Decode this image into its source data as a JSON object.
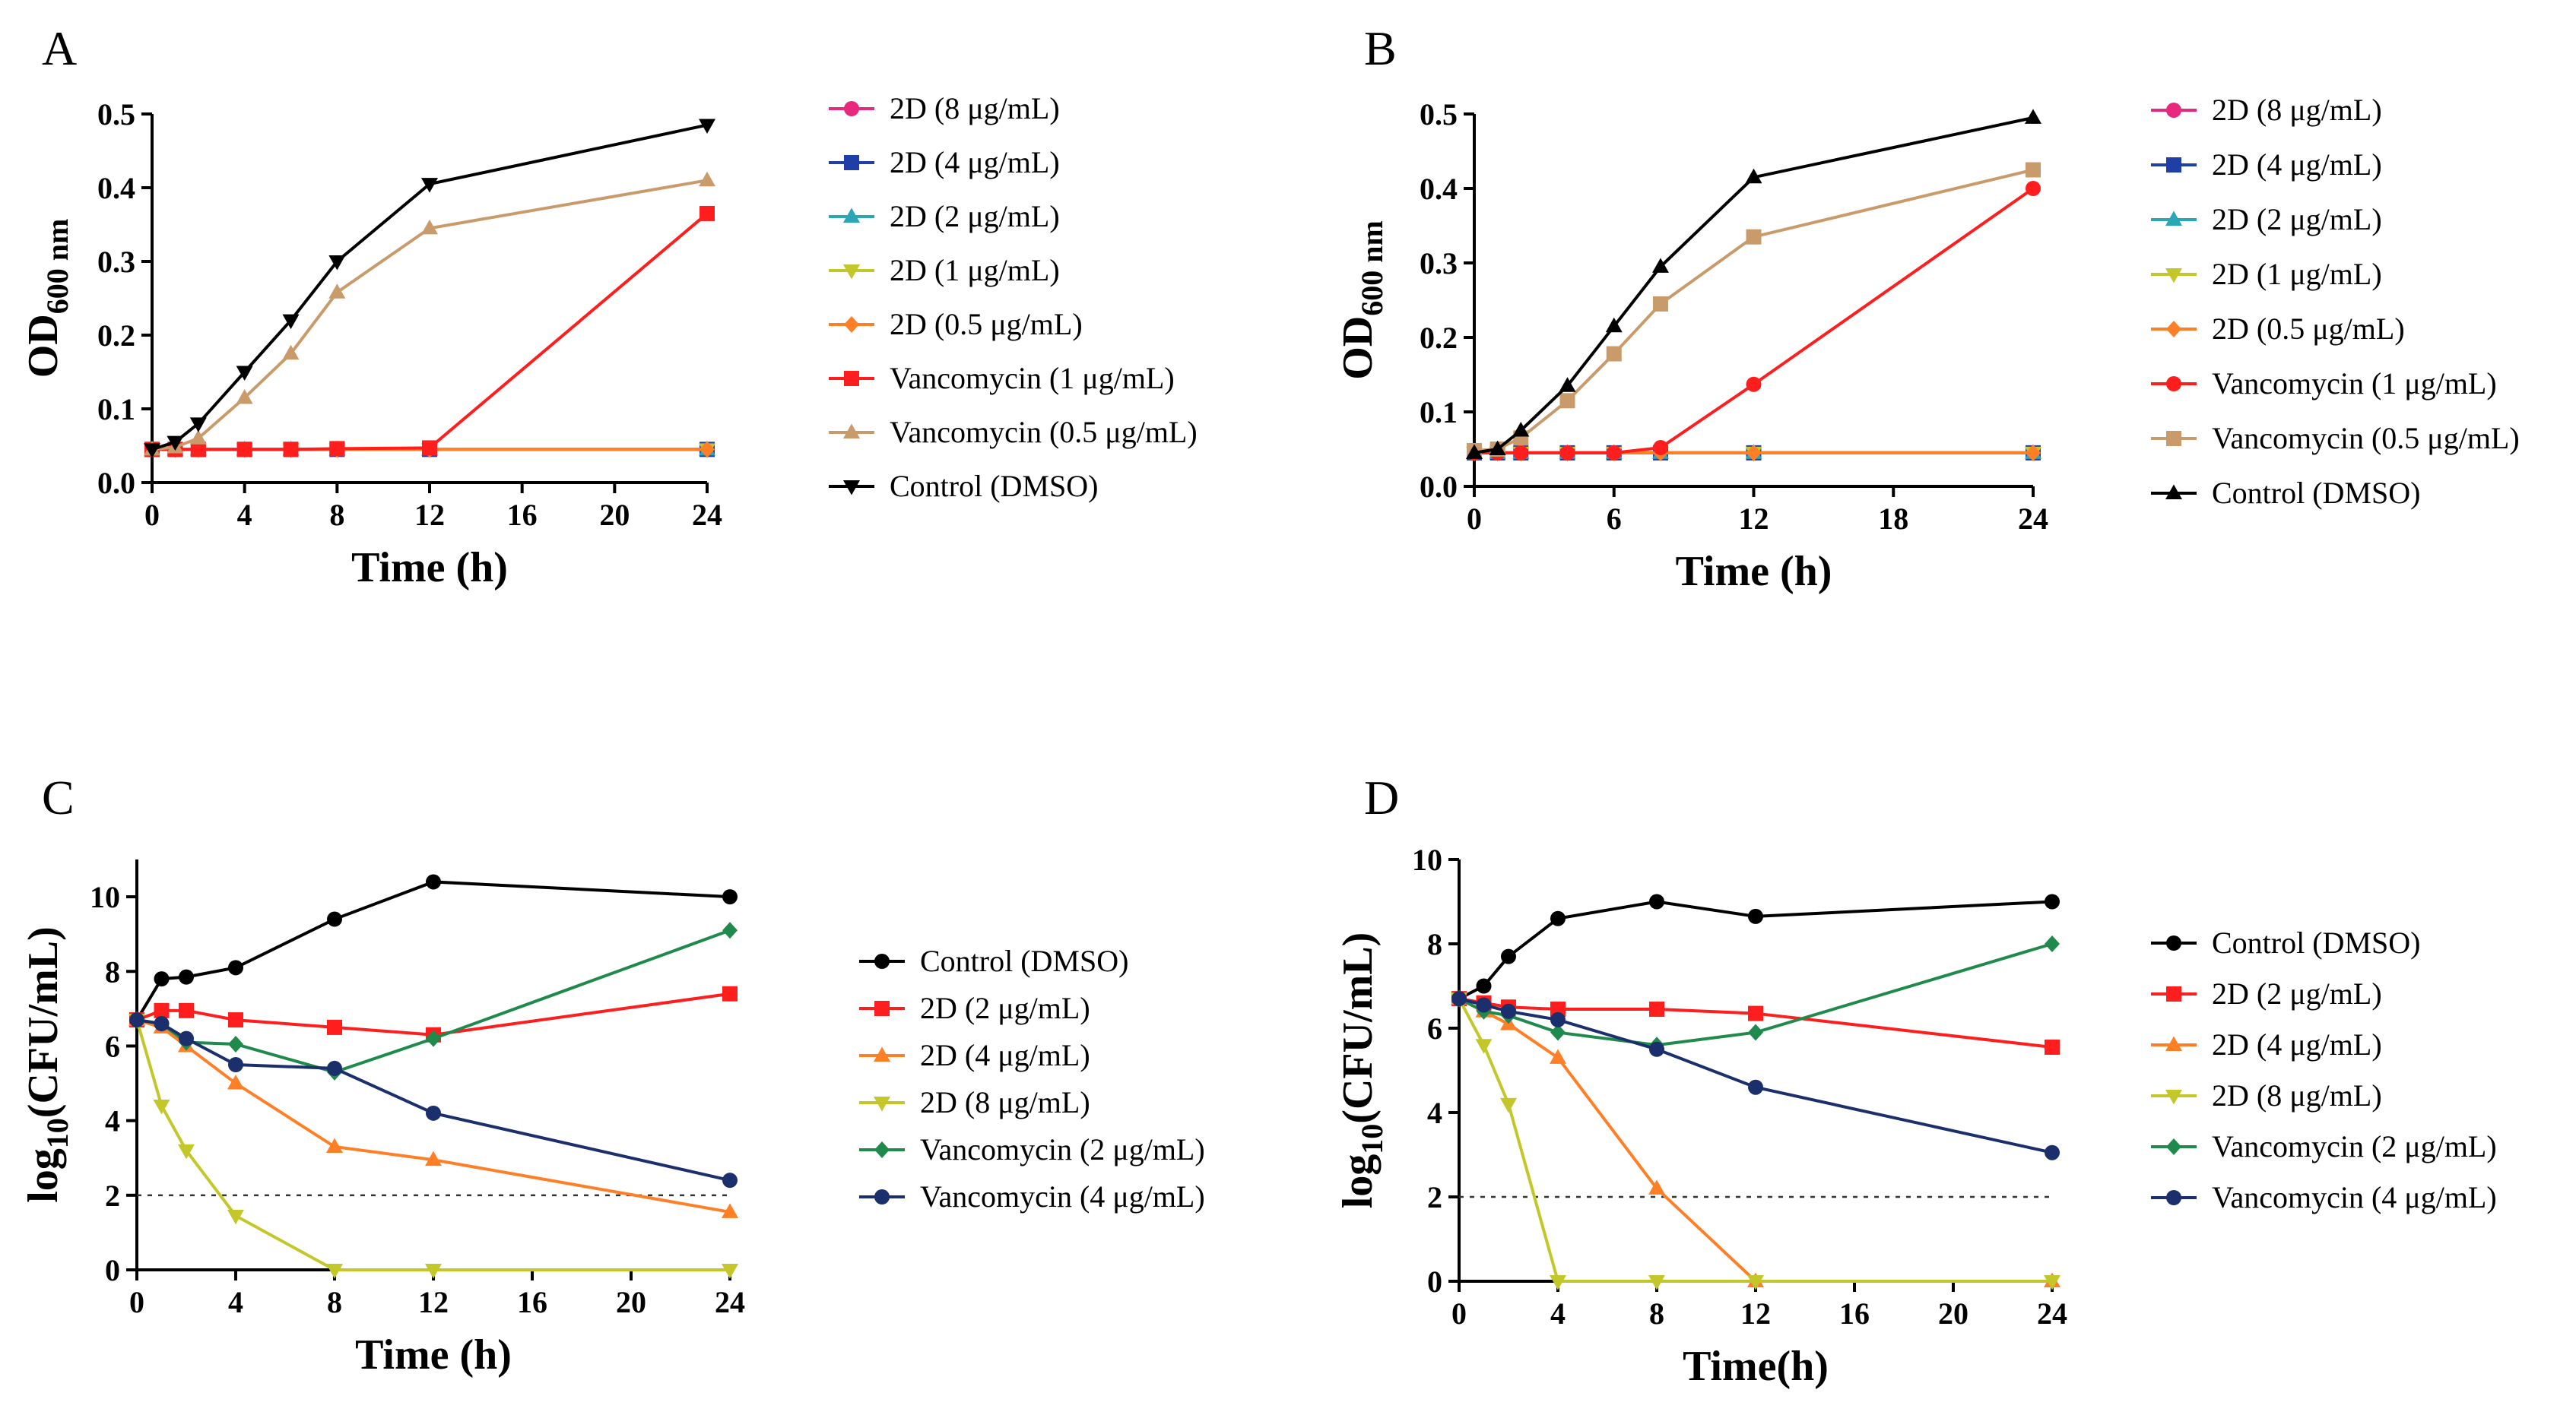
{
  "chart_data": [
    {
      "panel": "A",
      "type": "line",
      "xlabel": "Time (h)",
      "ylabel_main": "OD",
      "ylabel_sub": "600 nm",
      "xlim": [
        0,
        24
      ],
      "ylim": [
        0,
        0.5
      ],
      "xticks": [
        0,
        4,
        8,
        12,
        16,
        20,
        24
      ],
      "yticks": [
        0.0,
        0.1,
        0.2,
        0.3,
        0.4,
        0.5
      ],
      "ytick_format": 1,
      "legend_position": "right",
      "series": [
        {
          "name": "2D (8 μg/mL)",
          "color": "#e6287e",
          "marker": "circle",
          "x": [
            0,
            1,
            2,
            4,
            6,
            8,
            12,
            24
          ],
          "y": [
            0.045,
            0.045,
            0.045,
            0.045,
            0.045,
            0.045,
            0.045,
            0.045
          ]
        },
        {
          "name": "2D (4 μg/mL)",
          "color": "#1f3fa6",
          "marker": "square",
          "x": [
            0,
            1,
            2,
            4,
            6,
            8,
            12,
            24
          ],
          "y": [
            0.045,
            0.045,
            0.045,
            0.045,
            0.045,
            0.045,
            0.045,
            0.045
          ]
        },
        {
          "name": "2D (2 μg/mL)",
          "color": "#2aa6b4",
          "marker": "triangle-up",
          "x": [
            0,
            1,
            2,
            4,
            6,
            8,
            12,
            24
          ],
          "y": [
            0.045,
            0.045,
            0.045,
            0.045,
            0.045,
            0.045,
            0.045,
            0.045
          ]
        },
        {
          "name": "2D (1 μg/mL)",
          "color": "#c3c72a",
          "marker": "triangle-down",
          "x": [
            0,
            1,
            2,
            4,
            6,
            8,
            12,
            24
          ],
          "y": [
            0.045,
            0.045,
            0.045,
            0.045,
            0.045,
            0.045,
            0.045,
            0.045
          ]
        },
        {
          "name": "2D (0.5 μg/mL)",
          "color": "#ff7f27",
          "marker": "diamond",
          "x": [
            0,
            1,
            2,
            4,
            6,
            8,
            12,
            24
          ],
          "y": [
            0.045,
            0.045,
            0.045,
            0.045,
            0.045,
            0.045,
            0.045,
            0.045
          ]
        },
        {
          "name": "Vancomycin (1 μg/mL)",
          "color": "#ff1e1e",
          "marker": "square",
          "x": [
            0,
            1,
            2,
            4,
            6,
            8,
            12,
            24
          ],
          "y": [
            0.045,
            0.045,
            0.045,
            0.045,
            0.045,
            0.046,
            0.047,
            0.365
          ]
        },
        {
          "name": "Vancomycin (0.5 μg/mL)",
          "color": "#c99b6b",
          "marker": "triangle-up",
          "x": [
            0,
            1,
            2,
            4,
            6,
            8,
            12,
            24
          ],
          "y": [
            0.045,
            0.048,
            0.06,
            0.115,
            0.175,
            0.258,
            0.345,
            0.41
          ]
        },
        {
          "name": "Control (DMSO)",
          "color": "#000000",
          "marker": "triangle-down",
          "x": [
            0,
            1,
            2,
            4,
            6,
            8,
            12,
            24
          ],
          "y": [
            0.045,
            0.055,
            0.08,
            0.15,
            0.22,
            0.3,
            0.405,
            0.485
          ]
        }
      ]
    },
    {
      "panel": "B",
      "type": "line",
      "xlabel": "Time (h)",
      "ylabel_main": "OD",
      "ylabel_sub": "600 nm",
      "xlim": [
        0,
        24
      ],
      "ylim": [
        0,
        0.5
      ],
      "xticks": [
        0,
        6,
        12,
        18,
        24
      ],
      "yticks": [
        0.0,
        0.1,
        0.2,
        0.3,
        0.4,
        0.5
      ],
      "ytick_format": 1,
      "legend_position": "right",
      "series": [
        {
          "name": "2D (8 μg/mL)",
          "color": "#e6287e",
          "marker": "circle",
          "x": [
            0,
            1,
            2,
            4,
            6,
            8,
            12,
            24
          ],
          "y": [
            0.045,
            0.045,
            0.045,
            0.045,
            0.045,
            0.045,
            0.045,
            0.045
          ]
        },
        {
          "name": "2D (4 μg/mL)",
          "color": "#1f3fa6",
          "marker": "square",
          "x": [
            0,
            1,
            2,
            4,
            6,
            8,
            12,
            24
          ],
          "y": [
            0.045,
            0.045,
            0.045,
            0.045,
            0.045,
            0.045,
            0.045,
            0.045
          ]
        },
        {
          "name": "2D (2 μg/mL)",
          "color": "#2aa6b4",
          "marker": "triangle-up",
          "x": [
            0,
            1,
            2,
            4,
            6,
            8,
            12,
            24
          ],
          "y": [
            0.045,
            0.045,
            0.045,
            0.045,
            0.045,
            0.045,
            0.045,
            0.045
          ]
        },
        {
          "name": "2D (1 μg/mL)",
          "color": "#c3c72a",
          "marker": "triangle-down",
          "x": [
            0,
            1,
            2,
            4,
            6,
            8,
            12,
            24
          ],
          "y": [
            0.045,
            0.045,
            0.045,
            0.045,
            0.045,
            0.045,
            0.045,
            0.045
          ]
        },
        {
          "name": "2D (0.5 μg/mL)",
          "color": "#ff7f27",
          "marker": "diamond",
          "x": [
            0,
            1,
            2,
            4,
            6,
            8,
            12,
            24
          ],
          "y": [
            0.045,
            0.045,
            0.045,
            0.045,
            0.045,
            0.045,
            0.045,
            0.045
          ]
        },
        {
          "name": "Vancomycin (1 μg/mL)",
          "color": "#ff1e1e",
          "marker": "circle",
          "x": [
            0,
            1,
            2,
            4,
            6,
            8,
            12,
            24
          ],
          "y": [
            0.045,
            0.045,
            0.045,
            0.045,
            0.045,
            0.052,
            0.137,
            0.4
          ]
        },
        {
          "name": "Vancomycin (0.5 μg/mL)",
          "color": "#c99b6b",
          "marker": "square",
          "x": [
            0,
            1,
            2,
            4,
            6,
            8,
            12,
            24
          ],
          "y": [
            0.048,
            0.05,
            0.065,
            0.115,
            0.178,
            0.245,
            0.335,
            0.425
          ]
        },
        {
          "name": "Control (DMSO)",
          "color": "#000000",
          "marker": "triangle-up",
          "x": [
            0,
            1,
            2,
            4,
            6,
            8,
            12,
            24
          ],
          "y": [
            0.045,
            0.05,
            0.075,
            0.135,
            0.215,
            0.295,
            0.415,
            0.495
          ]
        }
      ]
    },
    {
      "panel": "C",
      "type": "line",
      "xlabel": "Time (h)",
      "ylabel_main": "log",
      "ylabel_sub": "10",
      "ylabel_tail": "(CFU/mL)",
      "xlim": [
        0,
        24
      ],
      "ylim": [
        0,
        11
      ],
      "xticks": [
        0,
        4,
        8,
        12,
        16,
        20,
        24
      ],
      "yticks": [
        0,
        2,
        4,
        6,
        8,
        10
      ],
      "ytick_format": 0,
      "reference_line": 2,
      "legend_position": "right",
      "series": [
        {
          "name": "Control (DMSO)",
          "color": "#000000",
          "marker": "circle",
          "x": [
            0,
            1,
            2,
            4,
            8,
            12,
            24
          ],
          "y": [
            6.7,
            7.8,
            7.85,
            8.1,
            9.4,
            10.4,
            10.0
          ]
        },
        {
          "name": "2D (2 μg/mL)",
          "color": "#ff1e1e",
          "marker": "square",
          "x": [
            0,
            1,
            2,
            4,
            8,
            12,
            24
          ],
          "y": [
            6.7,
            6.95,
            6.95,
            6.7,
            6.5,
            6.3,
            7.4
          ]
        },
        {
          "name": "2D (4 μg/mL)",
          "color": "#ff7f27",
          "marker": "triangle-up",
          "x": [
            0,
            1,
            2,
            4,
            8,
            12,
            24
          ],
          "y": [
            6.7,
            6.5,
            6.0,
            5.0,
            3.3,
            2.95,
            1.55
          ]
        },
        {
          "name": "2D (8 μg/mL)",
          "color": "#c3c72a",
          "marker": "triangle-down",
          "x": [
            0,
            1,
            2,
            4,
            8,
            12,
            24
          ],
          "y": [
            6.7,
            4.4,
            3.2,
            1.45,
            0,
            0,
            0
          ]
        },
        {
          "name": "Vancomycin (2 μg/mL)",
          "color": "#1f8a4c",
          "marker": "diamond",
          "x": [
            0,
            1,
            2,
            4,
            8,
            12,
            24
          ],
          "y": [
            6.7,
            6.6,
            6.1,
            6.05,
            5.3,
            6.2,
            9.1
          ]
        },
        {
          "name": "Vancomycin (4 μg/mL)",
          "color": "#1a2f6b",
          "marker": "circle",
          "x": [
            0,
            1,
            2,
            4,
            8,
            12,
            24
          ],
          "y": [
            6.7,
            6.6,
            6.2,
            5.5,
            5.4,
            4.2,
            2.4
          ]
        }
      ]
    },
    {
      "panel": "D",
      "type": "line",
      "xlabel": "Time(h)",
      "ylabel_main": "log",
      "ylabel_sub": "10",
      "ylabel_tail": "(CFU/mL)",
      "xlim": [
        0,
        24
      ],
      "ylim": [
        0,
        10
      ],
      "xticks": [
        0,
        4,
        8,
        12,
        16,
        20,
        24
      ],
      "yticks": [
        0,
        2,
        4,
        6,
        8,
        10
      ],
      "ytick_format": 0,
      "reference_line": 2,
      "legend_position": "right",
      "series": [
        {
          "name": "Control (DMSO)",
          "color": "#000000",
          "marker": "circle",
          "x": [
            0,
            1,
            2,
            4,
            8,
            12,
            24
          ],
          "y": [
            6.7,
            7.0,
            7.7,
            8.6,
            9.0,
            8.65,
            9.0
          ]
        },
        {
          "name": "2D (2 μg/mL)",
          "color": "#ff1e1e",
          "marker": "square",
          "x": [
            0,
            1,
            2,
            4,
            8,
            12,
            24
          ],
          "y": [
            6.7,
            6.6,
            6.5,
            6.45,
            6.45,
            6.35,
            5.55
          ]
        },
        {
          "name": "2D (4 μg/mL)",
          "color": "#ff7f27",
          "marker": "triangle-up",
          "x": [
            0,
            1,
            2,
            4,
            8,
            12,
            24
          ],
          "y": [
            6.7,
            6.4,
            6.1,
            5.3,
            2.2,
            0,
            0
          ]
        },
        {
          "name": "2D (8 μg/mL)",
          "color": "#c3c72a",
          "marker": "triangle-down",
          "x": [
            0,
            1,
            2,
            4,
            8,
            12,
            24
          ],
          "y": [
            6.7,
            5.6,
            4.2,
            0,
            0,
            0,
            0
          ]
        },
        {
          "name": "Vancomycin (2 μg/mL)",
          "color": "#1f8a4c",
          "marker": "diamond",
          "x": [
            0,
            1,
            2,
            4,
            8,
            12,
            24
          ],
          "y": [
            6.7,
            6.4,
            6.3,
            5.9,
            5.6,
            5.9,
            8.0
          ]
        },
        {
          "name": "Vancomycin (4 μg/mL)",
          "color": "#1a2f6b",
          "marker": "circle",
          "x": [
            0,
            1,
            2,
            4,
            8,
            12,
            24
          ],
          "y": [
            6.7,
            6.55,
            6.4,
            6.2,
            5.5,
            4.6,
            3.05
          ]
        }
      ]
    }
  ]
}
